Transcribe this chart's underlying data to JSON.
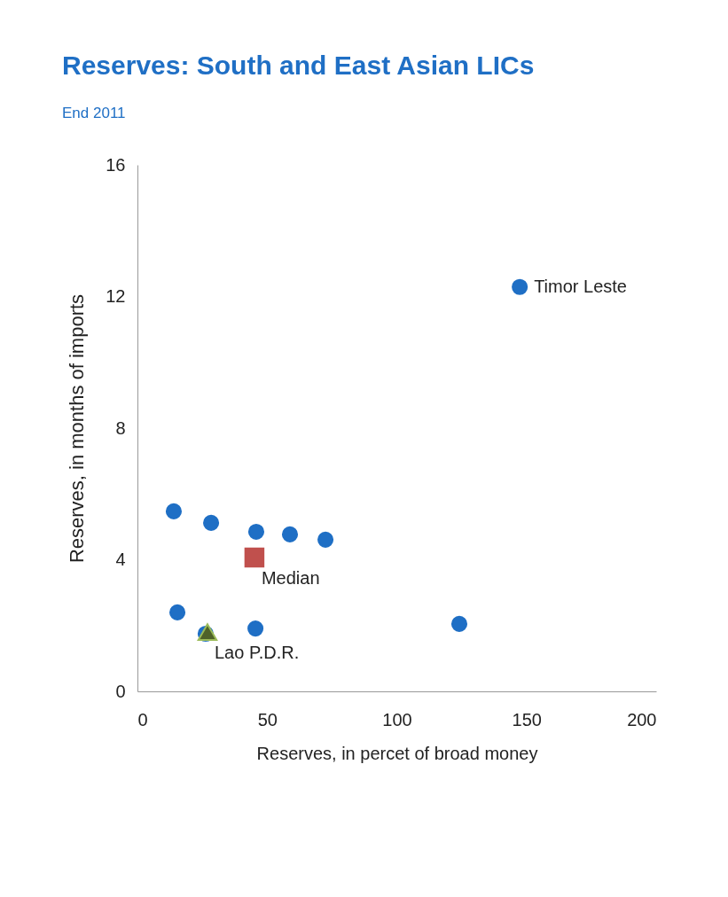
{
  "chart_data": {
    "type": "scatter",
    "title": "Reserves: South and East Asian LICs",
    "subtitle": "End 2011",
    "xlabel": "Reserves, in percet of broad money",
    "ylabel": "Reserves, in months of imports",
    "xlim": [
      0,
      200
    ],
    "xticks": [
      0,
      50,
      100,
      150,
      200
    ],
    "ylim": [
      0,
      16
    ],
    "yticks": [
      0,
      4,
      8,
      12,
      16
    ],
    "grid": false,
    "series": [
      {
        "color": "#1f6fc5",
        "marker": "circle",
        "x": [
          14,
          28.4,
          45.8,
          58.8,
          72.5,
          15.4,
          26.3,
          45.5,
          124.1,
          147.4
        ],
        "values": [
          5.47,
          5.12,
          4.85,
          4.77,
          4.61,
          2.4,
          1.75,
          1.91,
          2.05,
          12.29
        ]
      },
      {
        "name": "Median",
        "color": "#c0504d",
        "marker": "square",
        "x": [
          45.1
        ],
        "values": [
          4.07
        ]
      },
      {
        "name": "Lao P.D.R.",
        "color": "#4f6228",
        "marker": "triangle",
        "x": [
          27.0
        ],
        "values": [
          1.8
        ]
      }
    ],
    "annotations": [
      {
        "text": "Timor Leste",
        "x": 147.4,
        "y": 12.29
      }
    ]
  }
}
